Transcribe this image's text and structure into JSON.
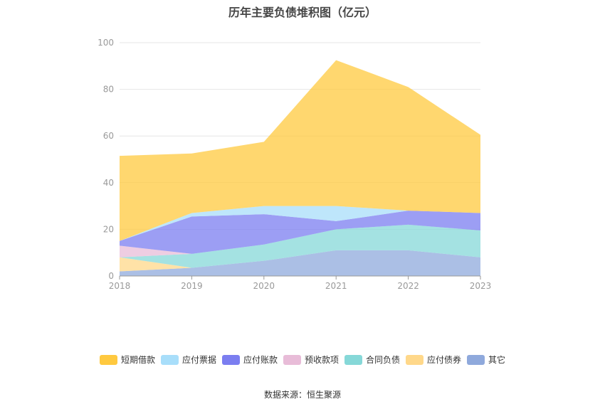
{
  "chart_data": {
    "type": "area",
    "stacked": true,
    "title": "历年主要负债堆积图（亿元）",
    "x": [
      "2018",
      "2019",
      "2020",
      "2021",
      "2022",
      "2023"
    ],
    "y_ticks": [
      "0",
      "20",
      "40",
      "60",
      "80",
      "100"
    ],
    "ylim": [
      0,
      100
    ],
    "grid": true,
    "legend_position": "bottom",
    "series": [
      {
        "name": "其它",
        "color": "#8fa9dc",
        "values": [
          2.0,
          3.5,
          6.5,
          11.0,
          11.0,
          8.0
        ]
      },
      {
        "name": "应付债券",
        "color": "#ffd88a",
        "values": [
          6.0,
          0.0,
          0.0,
          0.0,
          0.0,
          0.0
        ]
      },
      {
        "name": "合同负债",
        "color": "#86d8d8",
        "values": [
          0.0,
          6.0,
          7.0,
          9.0,
          11.0,
          11.5
        ]
      },
      {
        "name": "预收款项",
        "color": "#e8bcd8",
        "values": [
          5.0,
          0.0,
          0.0,
          0.0,
          0.0,
          0.0
        ]
      },
      {
        "name": "应付账款",
        "color": "#7b7ef0",
        "values": [
          2.0,
          16.0,
          13.0,
          3.5,
          6.0,
          7.5
        ]
      },
      {
        "name": "应付票据",
        "color": "#a8defa",
        "values": [
          0.0,
          1.5,
          3.5,
          6.5,
          0.0,
          0.0
        ]
      },
      {
        "name": "短期借款",
        "color": "#ffc93f",
        "values": [
          36.5,
          25.5,
          27.5,
          62.5,
          53.0,
          33.5
        ]
      }
    ],
    "legend_order": [
      "短期借款",
      "应付票据",
      "应付账款",
      "预收款项",
      "合同负债",
      "应付债券",
      "其它"
    ]
  },
  "source_note": "数据来源：恒生聚源"
}
